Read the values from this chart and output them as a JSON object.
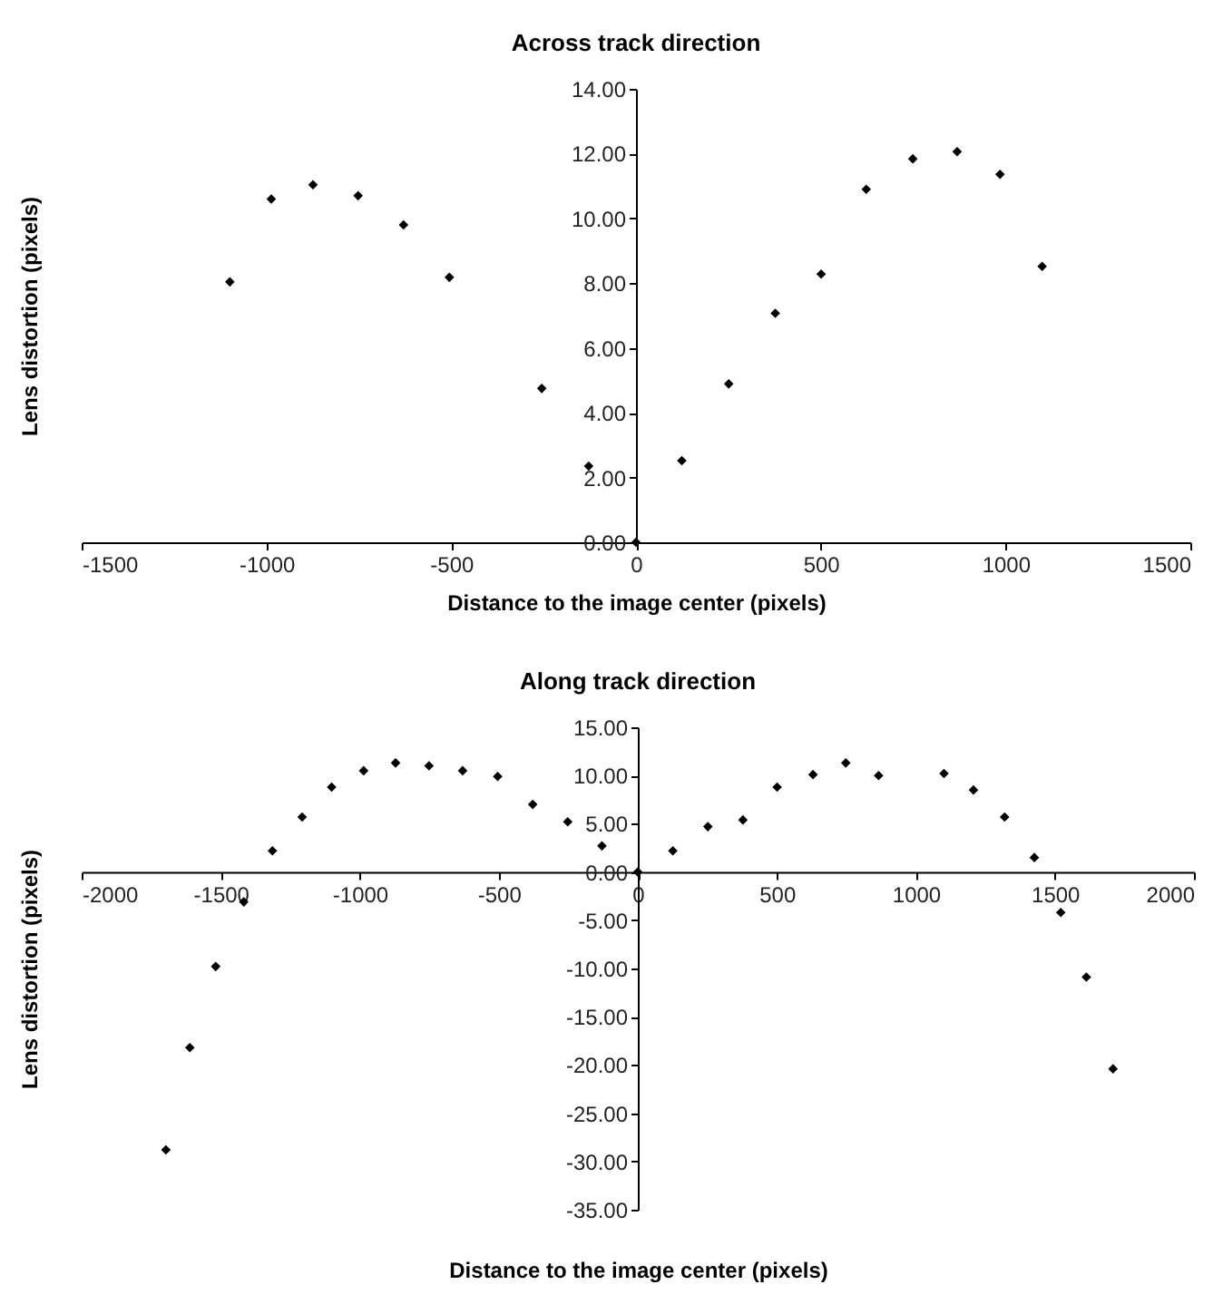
{
  "chart_data": [
    {
      "type": "scatter",
      "title": "Across track direction",
      "xlabel": "Distance to the image center (pixels)",
      "ylabel": "Lens distortion (pixels)",
      "x": [
        -1099,
        -987,
        -874,
        -752,
        -629,
        -505,
        -255,
        -128,
        0,
        124,
        251,
        377,
        501,
        623,
        749,
        869,
        985,
        1099
      ],
      "series": [
        {
          "color": "#000000",
          "values": [
            8.04,
            10.6,
            11.04,
            10.7,
            9.8,
            8.18,
            4.75,
            2.35,
            0,
            2.52,
            4.89,
            7.07,
            8.28,
            10.9,
            11.84,
            12.06,
            11.36,
            8.52
          ]
        }
      ],
      "xlim": [
        -1500,
        1500
      ],
      "xticks": [
        -1500,
        -1000,
        -500,
        0,
        500,
        1000,
        1500
      ],
      "ylim": [
        0,
        14
      ],
      "yticks": [
        {
          "value": 0,
          "label": "0.00"
        },
        {
          "value": 2,
          "label": "2.00"
        },
        {
          "value": 4,
          "label": "4.00"
        },
        {
          "value": 6,
          "label": "6.00"
        },
        {
          "value": 8,
          "label": "8.00"
        },
        {
          "value": 10,
          "label": "10.00"
        },
        {
          "value": 12,
          "label": "12.00"
        },
        {
          "value": 14,
          "label": "14.00"
        }
      ],
      "marker": "diamond",
      "grid": false
    },
    {
      "type": "scatter",
      "title": "Along track direction",
      "xlabel": "Distance to the image center (pixels)",
      "ylabel": "Lens distortion (pixels)",
      "x": [
        -1697,
        -1611,
        -1518,
        -1417,
        -1314,
        -1207,
        -1101,
        -986,
        -871,
        -751,
        -630,
        -504,
        -378,
        -252,
        -129,
        0,
        126,
        252,
        378,
        501,
        630,
        748,
        866,
        1101,
        1207,
        1319,
        1426,
        1521,
        1613,
        1709
      ],
      "series": [
        {
          "color": "#000000",
          "values": [
            -28.8,
            -18.2,
            -9.8,
            -3.1,
            2.2,
            5.7,
            8.8,
            10.5,
            11.3,
            11.0,
            10.5,
            9.9,
            7.0,
            5.2,
            2.7,
            0,
            2.2,
            4.7,
            5.4,
            8.8,
            10.1,
            11.3,
            10.0,
            10.2,
            8.5,
            5.7,
            1.5,
            -4.2,
            -10.9,
            -20.4
          ]
        }
      ],
      "xlim": [
        -2000,
        2000
      ],
      "xticks": [
        -2000,
        -1500,
        -1000,
        -500,
        0,
        500,
        1000,
        1500,
        2000
      ],
      "ylim": [
        -35,
        15
      ],
      "yticks": [
        {
          "value": -35,
          "label": "-35.00"
        },
        {
          "value": -30,
          "label": "-30.00"
        },
        {
          "value": -25,
          "label": "-25.00"
        },
        {
          "value": -20,
          "label": "-20.00"
        },
        {
          "value": -15,
          "label": "-15.00"
        },
        {
          "value": -10,
          "label": "-10.00"
        },
        {
          "value": -5,
          "label": "-5.00"
        },
        {
          "value": 0,
          "label": "0.00"
        },
        {
          "value": 5,
          "label": "5.00"
        },
        {
          "value": 10,
          "label": "10.00"
        },
        {
          "value": 15,
          "label": "15.00"
        }
      ],
      "marker": "diamond",
      "grid": false
    }
  ]
}
